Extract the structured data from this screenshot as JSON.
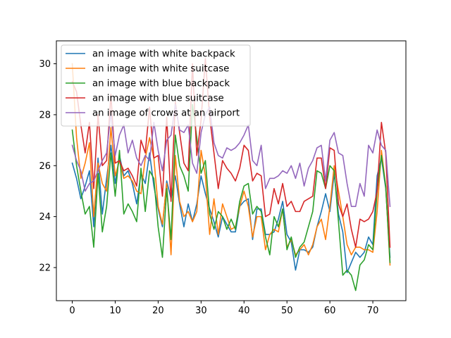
{
  "chart_data": {
    "type": "line",
    "title": "",
    "xlabel": "",
    "ylabel": "",
    "xlim": [
      -3.7,
      77.7
    ],
    "ylim": [
      20.7,
      30.9
    ],
    "x_ticks": [
      0,
      10,
      20,
      30,
      40,
      50,
      60,
      70
    ],
    "y_ticks": [
      22,
      24,
      26,
      28,
      30
    ],
    "grid": false,
    "legend_position": "top-left",
    "x": [
      0,
      1,
      2,
      3,
      4,
      5,
      6,
      7,
      8,
      9,
      10,
      11,
      12,
      13,
      14,
      15,
      16,
      17,
      18,
      19,
      20,
      21,
      22,
      23,
      24,
      25,
      26,
      27,
      28,
      29,
      30,
      31,
      32,
      33,
      34,
      35,
      36,
      37,
      38,
      39,
      40,
      41,
      42,
      43,
      44,
      45,
      46,
      47,
      48,
      49,
      50,
      51,
      52,
      53,
      54,
      55,
      56,
      57,
      58,
      59,
      60,
      61,
      62,
      63,
      64,
      65,
      66,
      67,
      68,
      69,
      70,
      71,
      72,
      73,
      74
    ],
    "series": [
      {
        "name": "an image with white backpack",
        "color": "#1f77b4",
        "values": [
          26.1,
          25.5,
          24.7,
          25.2,
          25.8,
          23.6,
          26.3,
          24.1,
          25.5,
          26.8,
          25.3,
          26.4,
          25.6,
          25.8,
          25.3,
          24.5,
          25.7,
          25.3,
          26.5,
          25.2,
          24.3,
          23.6,
          25.4,
          24.7,
          25.6,
          24.5,
          23.6,
          24.5,
          23.8,
          24.5,
          25.6,
          24.9,
          24.3,
          23.8,
          23.2,
          24.0,
          23.7,
          23.4,
          23.4,
          24.4,
          24.6,
          24.7,
          23.1,
          24.3,
          24.3,
          23.3,
          23.3,
          23.4,
          23.9,
          24.6,
          23.3,
          23.0,
          21.9,
          22.7,
          22.7,
          22.6,
          22.8,
          23.6,
          24.2,
          24.9,
          24.2,
          25.7,
          24.1,
          23.4,
          21.8,
          22.2,
          22.6,
          22.4,
          22.6,
          23.2,
          22.9,
          25.6,
          26.3,
          25.1,
          22.4
        ]
      },
      {
        "name": "an image with white suitcase",
        "color": "#ff7f0e",
        "values": [
          30.0,
          27.1,
          25.5,
          26.1,
          26.9,
          24.0,
          26.1,
          25.3,
          25.0,
          27.5,
          25.6,
          26.2,
          25.5,
          25.6,
          25.4,
          25.0,
          24.9,
          26.3,
          27.1,
          26.3,
          24.4,
          23.7,
          25.3,
          22.5,
          26.4,
          24.6,
          24.0,
          24.2,
          23.8,
          24.2,
          26.6,
          25.6,
          23.3,
          24.7,
          23.3,
          24.5,
          24.0,
          23.5,
          23.6,
          24.4,
          25.0,
          24.4,
          23.2,
          24.0,
          24.0,
          22.7,
          23.3,
          23.5,
          23.4,
          24.3,
          22.8,
          23.1,
          22.5,
          22.7,
          22.9,
          22.5,
          22.9,
          23.6,
          23.9,
          23.1,
          24.4,
          26.0,
          25.0,
          24.0,
          22.9,
          22.5,
          22.8,
          22.8,
          22.7,
          22.7,
          22.6,
          24.2,
          26.6,
          25.2,
          22.1
        ]
      },
      {
        "name": "an image with blue backpack",
        "color": "#2ca02c",
        "values": [
          27.4,
          26.0,
          25.0,
          24.1,
          24.4,
          22.8,
          25.7,
          23.4,
          24.4,
          26.5,
          24.8,
          26.6,
          24.1,
          24.5,
          24.2,
          23.8,
          25.9,
          24.2,
          25.8,
          25.5,
          23.6,
          22.4,
          25.1,
          23.1,
          27.2,
          26.0,
          25.6,
          25.0,
          28.4,
          27.1,
          25.7,
          26.2,
          24.1,
          23.5,
          24.2,
          24.0,
          23.5,
          23.9,
          23.5,
          24.6,
          25.2,
          25.3,
          24.1,
          24.4,
          24.2,
          23.2,
          22.5,
          24.0,
          23.6,
          24.3,
          22.7,
          23.2,
          22.4,
          22.8,
          23.0,
          23.6,
          24.2,
          25.8,
          25.7,
          25.1,
          26.0,
          25.8,
          23.8,
          21.7,
          21.9,
          21.7,
          21.1,
          22.1,
          22.3,
          22.9,
          22.7,
          25.0,
          26.4,
          25.2,
          22.2
        ]
      },
      {
        "name": "an image with blue suitcase",
        "color": "#d62728",
        "values": [
          29.3,
          28.9,
          27.6,
          26.5,
          27.7,
          25.1,
          28.0,
          26.0,
          26.2,
          28.8,
          26.1,
          26.2,
          25.8,
          25.9,
          25.6,
          25.2,
          27.0,
          26.5,
          28.3,
          26.3,
          26.4,
          24.8,
          27.9,
          24.6,
          28.5,
          27.3,
          26.1,
          25.8,
          30.0,
          26.4,
          27.8,
          30.2,
          27.9,
          26.5,
          25.1,
          26.2,
          25.9,
          25.7,
          25.4,
          25.9,
          26.8,
          26.6,
          25.4,
          25.7,
          25.6,
          24.0,
          24.1,
          25.1,
          24.5,
          25.3,
          24.4,
          24.6,
          24.2,
          24.2,
          24.6,
          24.7,
          24.8,
          26.3,
          26.3,
          25.1,
          26.7,
          26.6,
          24.5,
          24.0,
          24.5,
          23.5,
          22.8,
          23.9,
          23.8,
          23.9,
          24.2,
          25.0,
          27.7,
          26.5,
          22.8
        ]
      },
      {
        "name": "an image of crows at an airport",
        "color": "#9467bd",
        "values": [
          26.8,
          26.2,
          25.8,
          25.0,
          25.3,
          25.4,
          25.8,
          26.2,
          26.5,
          28.1,
          26.4,
          27.2,
          27.6,
          26.5,
          27.0,
          26.3,
          26.0,
          26.4,
          26.2,
          27.7,
          26.6,
          25.8,
          27.0,
          27.2,
          28.4,
          27.4,
          27.3,
          27.6,
          26.1,
          25.7,
          27.3,
          28.0,
          28.3,
          26.9,
          26.4,
          26.3,
          26.7,
          26.6,
          26.7,
          26.9,
          27.2,
          27.6,
          26.2,
          26.0,
          26.8,
          25.1,
          25.5,
          25.5,
          25.6,
          25.8,
          25.7,
          26.0,
          25.5,
          26.1,
          25.2,
          25.9,
          26.2,
          26.7,
          26.8,
          25.4,
          27.0,
          27.3,
          26.5,
          26.4,
          25.3,
          24.4,
          24.4,
          25.3,
          24.8,
          26.8,
          26.5,
          27.4,
          26.8,
          26.6,
          24.4
        ]
      }
    ]
  }
}
